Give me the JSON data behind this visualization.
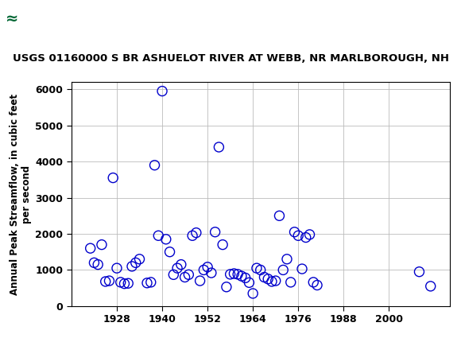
{
  "title": "USGS 01160000 S BR ASHUELOT RIVER AT WEBB, NR MARLBOROUGH, NH",
  "ylabel": "Annual Peak Streamflow, in cubic feet\nper second",
  "years": [
    1921,
    1922,
    1923,
    1924,
    1925,
    1926,
    1927,
    1928,
    1929,
    1930,
    1931,
    1932,
    1933,
    1934,
    1936,
    1937,
    1938,
    1939,
    1940,
    1941,
    1942,
    1943,
    1944,
    1945,
    1946,
    1947,
    1948,
    1949,
    1950,
    1951,
    1952,
    1953,
    1954,
    1955,
    1956,
    1957,
    1958,
    1959,
    1960,
    1961,
    1962,
    1963,
    1964,
    1965,
    1966,
    1967,
    1968,
    1969,
    1970,
    1971,
    1972,
    1973,
    1974,
    1975,
    1976,
    1977,
    1978,
    1979,
    1980,
    1981,
    2008,
    2011
  ],
  "flows": [
    1600,
    1200,
    1150,
    1700,
    680,
    700,
    3550,
    1050,
    660,
    620,
    630,
    1100,
    1200,
    1300,
    640,
    660,
    3900,
    1950,
    5950,
    1850,
    1500,
    870,
    1050,
    1150,
    800,
    870,
    1950,
    2030,
    700,
    1000,
    1080,
    920,
    2050,
    4400,
    1700,
    530,
    880,
    900,
    880,
    830,
    780,
    650,
    350,
    1050,
    1000,
    800,
    750,
    680,
    700,
    2500,
    1000,
    1300,
    660,
    2050,
    1950,
    1030,
    1900,
    1980,
    660,
    580,
    950,
    550
  ],
  "xlim": [
    1916,
    2016
  ],
  "ylim": [
    0,
    6200
  ],
  "xticks": [
    1928,
    1940,
    1952,
    1964,
    1976,
    1988,
    2000
  ],
  "xticklabels": [
    "1928",
    "1940",
    "1952",
    "1964",
    "1976",
    "1988",
    "2000"
  ],
  "yticks": [
    0,
    1000,
    2000,
    3000,
    4000,
    5000,
    6000
  ],
  "marker_color": "#0000CC",
  "marker_size": 5,
  "grid_color": "#bbbbbb",
  "bg_color": "#ffffff",
  "header_color": "#006633",
  "fig_width": 5.8,
  "fig_height": 4.3,
  "dpi": 100
}
